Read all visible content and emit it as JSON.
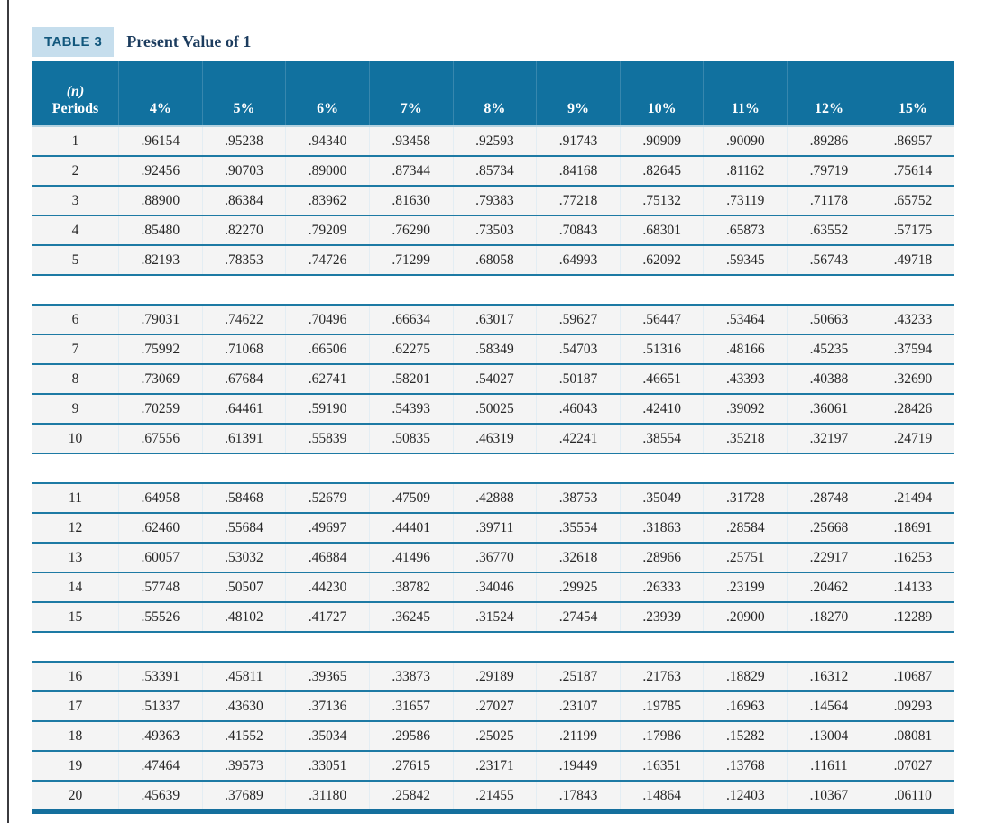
{
  "page": {
    "table_label": "TABLE 3",
    "title": "Present Value of 1"
  },
  "table": {
    "period_header_line1": "(n)",
    "period_header_line2": "Periods",
    "rate_headers": [
      "4%",
      "5%",
      "6%",
      "7%",
      "8%",
      "9%",
      "10%",
      "11%",
      "12%",
      "15%"
    ],
    "spacer_after": [
      5,
      10,
      15
    ],
    "rows": [
      {
        "n": "1",
        "values": [
          ".96154",
          ".95238",
          ".94340",
          ".93458",
          ".92593",
          ".91743",
          ".90909",
          ".90090",
          ".89286",
          ".86957"
        ]
      },
      {
        "n": "2",
        "values": [
          ".92456",
          ".90703",
          ".89000",
          ".87344",
          ".85734",
          ".84168",
          ".82645",
          ".81162",
          ".79719",
          ".75614"
        ]
      },
      {
        "n": "3",
        "values": [
          ".88900",
          ".86384",
          ".83962",
          ".81630",
          ".79383",
          ".77218",
          ".75132",
          ".73119",
          ".71178",
          ".65752"
        ]
      },
      {
        "n": "4",
        "values": [
          ".85480",
          ".82270",
          ".79209",
          ".76290",
          ".73503",
          ".70843",
          ".68301",
          ".65873",
          ".63552",
          ".57175"
        ]
      },
      {
        "n": "5",
        "values": [
          ".82193",
          ".78353",
          ".74726",
          ".71299",
          ".68058",
          ".64993",
          ".62092",
          ".59345",
          ".56743",
          ".49718"
        ]
      },
      {
        "n": "6",
        "values": [
          ".79031",
          ".74622",
          ".70496",
          ".66634",
          ".63017",
          ".59627",
          ".56447",
          ".53464",
          ".50663",
          ".43233"
        ]
      },
      {
        "n": "7",
        "values": [
          ".75992",
          ".71068",
          ".66506",
          ".62275",
          ".58349",
          ".54703",
          ".51316",
          ".48166",
          ".45235",
          ".37594"
        ]
      },
      {
        "n": "8",
        "values": [
          ".73069",
          ".67684",
          ".62741",
          ".58201",
          ".54027",
          ".50187",
          ".46651",
          ".43393",
          ".40388",
          ".32690"
        ]
      },
      {
        "n": "9",
        "values": [
          ".70259",
          ".64461",
          ".59190",
          ".54393",
          ".50025",
          ".46043",
          ".42410",
          ".39092",
          ".36061",
          ".28426"
        ]
      },
      {
        "n": "10",
        "values": [
          ".67556",
          ".61391",
          ".55839",
          ".50835",
          ".46319",
          ".42241",
          ".38554",
          ".35218",
          ".32197",
          ".24719"
        ]
      },
      {
        "n": "11",
        "values": [
          ".64958",
          ".58468",
          ".52679",
          ".47509",
          ".42888",
          ".38753",
          ".35049",
          ".31728",
          ".28748",
          ".21494"
        ]
      },
      {
        "n": "12",
        "values": [
          ".62460",
          ".55684",
          ".49697",
          ".44401",
          ".39711",
          ".35554",
          ".31863",
          ".28584",
          ".25668",
          ".18691"
        ]
      },
      {
        "n": "13",
        "values": [
          ".60057",
          ".53032",
          ".46884",
          ".41496",
          ".36770",
          ".32618",
          ".28966",
          ".25751",
          ".22917",
          ".16253"
        ]
      },
      {
        "n": "14",
        "values": [
          ".57748",
          ".50507",
          ".44230",
          ".38782",
          ".34046",
          ".29925",
          ".26333",
          ".23199",
          ".20462",
          ".14133"
        ]
      },
      {
        "n": "15",
        "values": [
          ".55526",
          ".48102",
          ".41727",
          ".36245",
          ".31524",
          ".27454",
          ".23939",
          ".20900",
          ".18270",
          ".12289"
        ]
      },
      {
        "n": "16",
        "values": [
          ".53391",
          ".45811",
          ".39365",
          ".33873",
          ".29189",
          ".25187",
          ".21763",
          ".18829",
          ".16312",
          ".10687"
        ]
      },
      {
        "n": "17",
        "values": [
          ".51337",
          ".43630",
          ".37136",
          ".31657",
          ".27027",
          ".23107",
          ".19785",
          ".16963",
          ".14564",
          ".09293"
        ]
      },
      {
        "n": "18",
        "values": [
          ".49363",
          ".41552",
          ".35034",
          ".29586",
          ".25025",
          ".21199",
          ".17986",
          ".15282",
          ".13004",
          ".08081"
        ]
      },
      {
        "n": "19",
        "values": [
          ".47464",
          ".39573",
          ".33051",
          ".27615",
          ".23171",
          ".19449",
          ".16351",
          ".13768",
          ".11611",
          ".07027"
        ]
      },
      {
        "n": "20",
        "values": [
          ".45639",
          ".37689",
          ".31180",
          ".25842",
          ".21455",
          ".17843",
          ".14864",
          ".12403",
          ".10367",
          ".06110"
        ]
      }
    ]
  },
  "colors": {
    "header_bg": "#11719f",
    "chip_bg": "#c6deed",
    "chip_text": "#12577c",
    "title_text": "#1c3c5e",
    "row_bg": "#f4f4f4",
    "separator_teal": "#1d7aa4",
    "bottom_border": "#156f9d",
    "page_rule": "#3b3b3f"
  }
}
